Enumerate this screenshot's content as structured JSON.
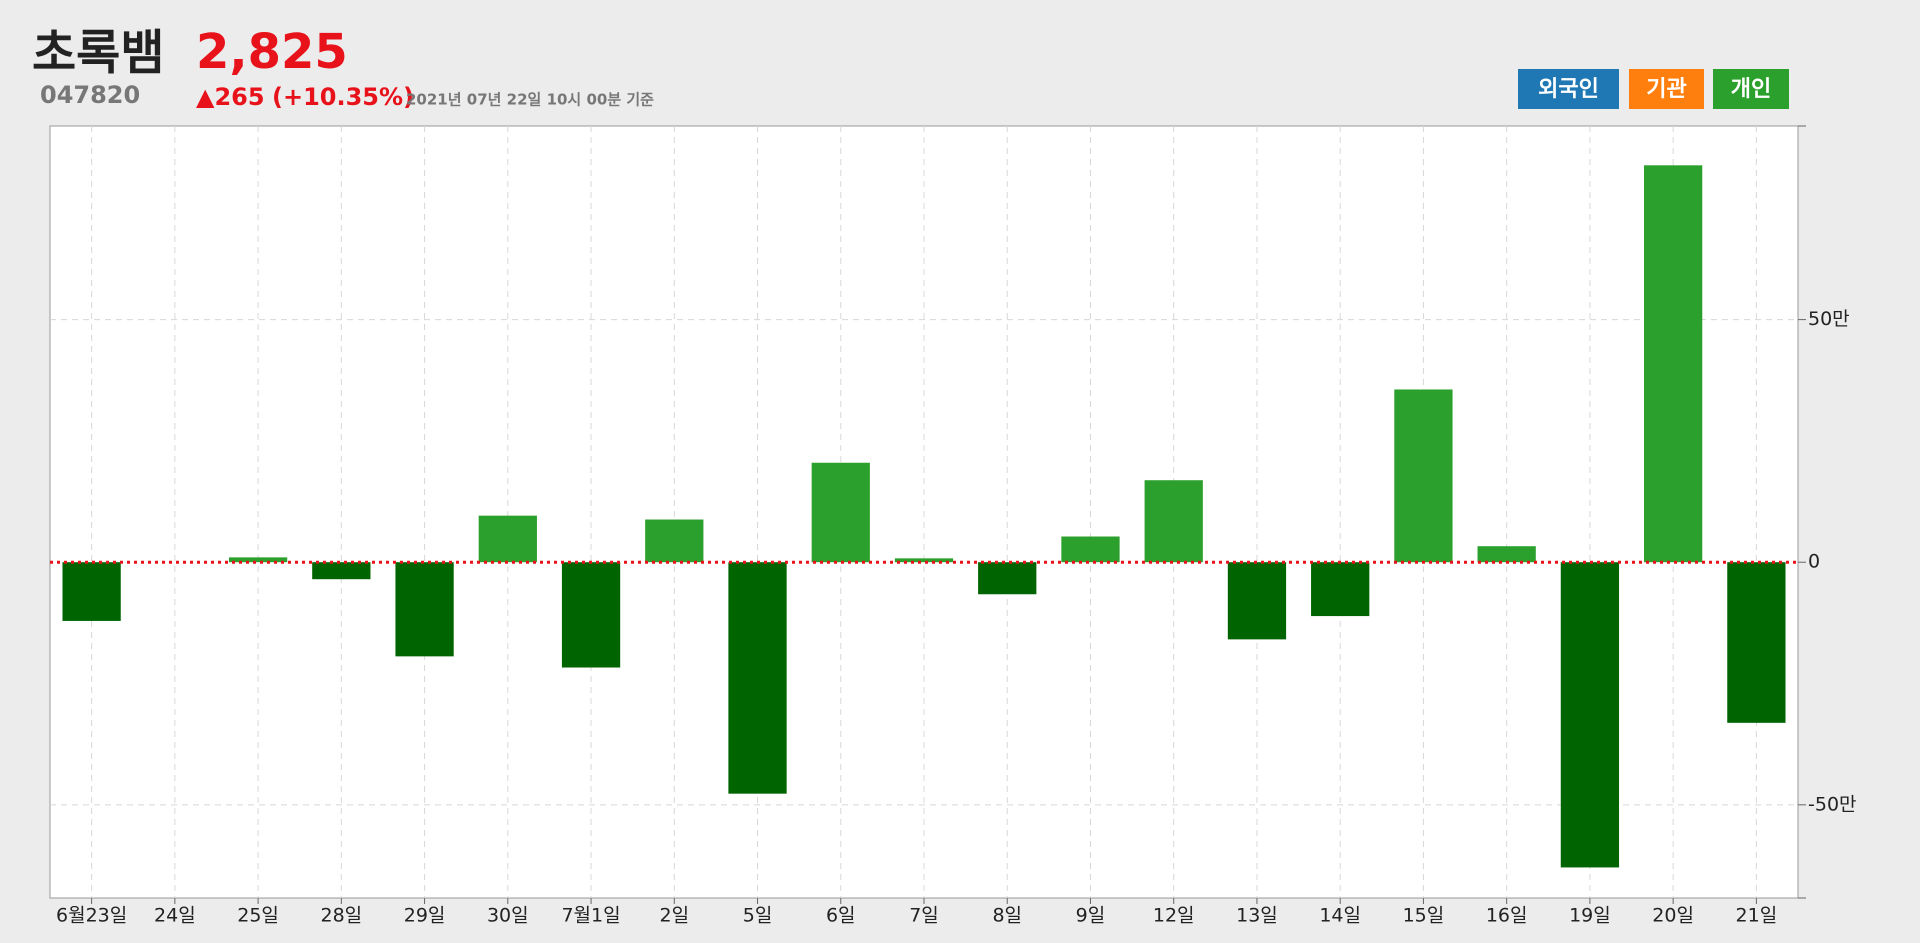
{
  "header": {
    "title": "초록뱀",
    "code": "047820",
    "price": "2,825",
    "change": "▲265",
    "change_pct": "(+10.35%)",
    "timestamp": "2021년 07년 22일 10시 00분 기준"
  },
  "legend_buttons": [
    {
      "label": "외국인",
      "color": "#1f77b4"
    },
    {
      "label": "기관",
      "color": "#ff7f0e"
    },
    {
      "label": "개인",
      "color": "#2ca02c"
    }
  ],
  "chart_data": {
    "type": "bar",
    "categories": [
      "6월23일",
      "24일",
      "25일",
      "28일",
      "29일",
      "30일",
      "7월1일",
      "2일",
      "5일",
      "6일",
      "7일",
      "8일",
      "9일",
      "12일",
      "13일",
      "14일",
      "15일",
      "16일",
      "19일",
      "20일",
      "21일"
    ],
    "values": [
      -12.1,
      0,
      1,
      -3.5,
      -19.4,
      9.6,
      -21.7,
      8.8,
      -47.7,
      20.5,
      0.8,
      -6.6,
      5.3,
      16.9,
      -15.9,
      -11.1,
      35.6,
      3.3,
      -62.9,
      81.8,
      -33.1
    ],
    "color_positive": "#2ca02c",
    "color_negative": "#006400",
    "ylim": [
      -69.2,
      89.9
    ],
    "yticks": [
      {
        "value": -50,
        "label": "-50만"
      },
      0,
      {
        "value": 50,
        "label": "50만"
      }
    ],
    "grid": true,
    "zero_line_color": "#e8121b"
  }
}
